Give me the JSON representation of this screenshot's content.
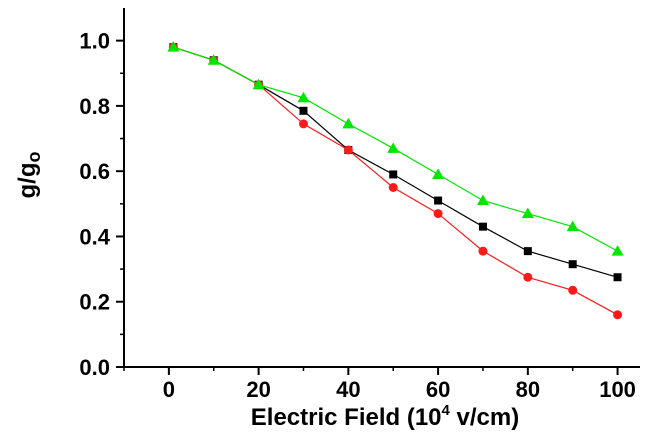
{
  "chart_data": {
    "type": "line",
    "title": "",
    "xlabel_main": "Electric Field (10",
    "xlabel_sup": "4",
    "xlabel_tail": " v/cm)",
    "ylabel_main": "g/g",
    "ylabel_sub": "o",
    "xlim": [
      -10,
      105
    ],
    "ylim": [
      0,
      1.1
    ],
    "x_ticks": [
      0,
      20,
      40,
      60,
      80,
      100
    ],
    "y_ticks": [
      0.0,
      0.2,
      0.4,
      0.6,
      0.8,
      1.0
    ],
    "x_tick_labels": [
      "0",
      "20",
      "40",
      "60",
      "80",
      "100"
    ],
    "y_tick_labels": [
      "0.0",
      "0.2",
      "0.4",
      "0.6",
      "0.8",
      "1.0"
    ],
    "grid": false,
    "legend": "none",
    "series": [
      {
        "marker": "square",
        "color": "#000000",
        "x": [
          1,
          10,
          20,
          30,
          40,
          50,
          60,
          70,
          80,
          90,
          100
        ],
        "y": [
          0.98,
          0.94,
          0.865,
          0.785,
          0.665,
          0.59,
          0.51,
          0.43,
          0.355,
          0.315,
          0.275
        ]
      },
      {
        "marker": "circle",
        "color": "#ff1a1a",
        "x": [
          1,
          10,
          20,
          30,
          40,
          50,
          60,
          70,
          80,
          90,
          100
        ],
        "y": [
          0.98,
          0.94,
          0.865,
          0.745,
          0.665,
          0.55,
          0.47,
          0.355,
          0.275,
          0.235,
          0.16
        ]
      },
      {
        "marker": "triangle",
        "color": "#00e600",
        "x": [
          1,
          10,
          20,
          30,
          40,
          50,
          60,
          70,
          80,
          90,
          100
        ],
        "y": [
          0.98,
          0.94,
          0.865,
          0.825,
          0.745,
          0.67,
          0.59,
          0.51,
          0.47,
          0.43,
          0.355
        ]
      }
    ]
  }
}
